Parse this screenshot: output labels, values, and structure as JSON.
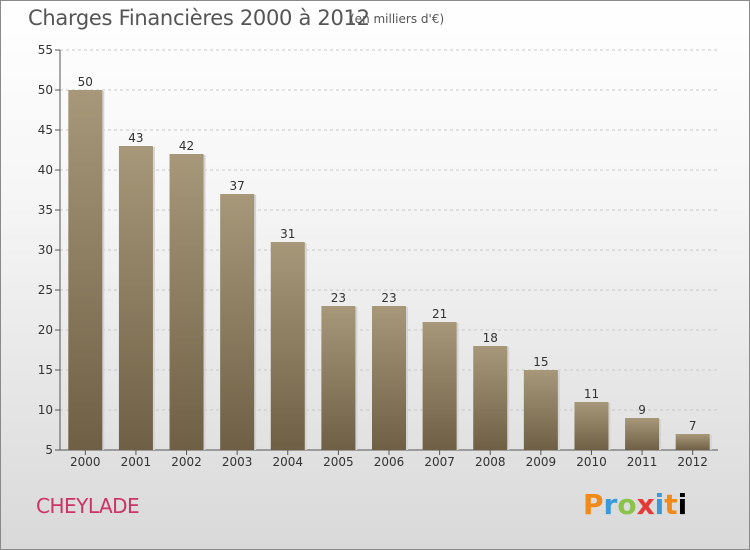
{
  "header": {
    "title": "Charges Financières 2000 à 2012",
    "unit": "(en milliers d'€)"
  },
  "footer": {
    "town": "CHEYLADE",
    "brand": "Proxiti"
  },
  "colors": {
    "bar_top": "#a8987a",
    "bar_bottom": "#6f5f45",
    "town": "#cc3366"
  },
  "chart_data": {
    "type": "bar",
    "categories": [
      "2000",
      "2001",
      "2002",
      "2003",
      "2004",
      "2005",
      "2006",
      "2007",
      "2008",
      "2009",
      "2010",
      "2011",
      "2012"
    ],
    "values": [
      50,
      43,
      42,
      37,
      31,
      23,
      23,
      21,
      18,
      15,
      11,
      9,
      7
    ],
    "title": "Charges Financières 2000 à 2012",
    "subtitle": "(en milliers d'€)",
    "ylim": [
      5,
      55
    ],
    "yticks": [
      5,
      10,
      15,
      20,
      25,
      30,
      35,
      40,
      45,
      50,
      55
    ],
    "grid": "horizontal-dashed",
    "data_labels": true
  }
}
